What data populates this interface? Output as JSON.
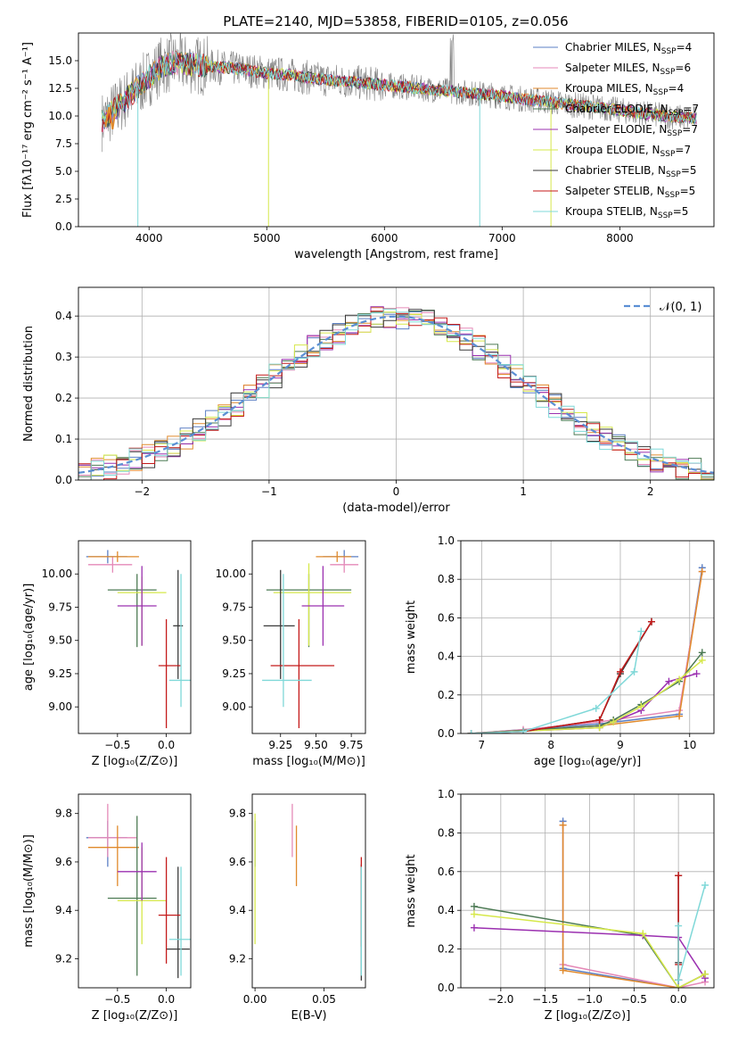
{
  "figure": {
    "title": "PLATE=2140, MJD=53858, FIBERID=0105, z=0.056"
  },
  "chart_data": [
    {
      "id": "spectrum",
      "type": "line",
      "xlabel": "wavelength [Angstrom, rest frame]",
      "ylabel": "Flux [fλ10⁻¹⁷ erg cm⁻² s⁻¹ A⁻¹]",
      "xlim": [
        3400,
        8800
      ],
      "ylim": [
        0,
        17.5
      ],
      "xticks": [
        4000,
        5000,
        6000,
        7000,
        8000
      ],
      "yticks": [
        0.0,
        2.5,
        5.0,
        7.5,
        10.0,
        12.5,
        15.0
      ],
      "legend_position": "upper-right",
      "series": [
        {
          "name": "Chabrier MILES, N_SSP=4",
          "label_main": "Chabrier MILES, N",
          "label_sub": "SSP",
          "label_tail": "=4",
          "color": "#5b7fc4"
        },
        {
          "name": "Salpeter MILES, N_SSP=6",
          "label_main": "Salpeter MILES, N",
          "label_sub": "SSP",
          "label_tail": "=6",
          "color": "#e58ab8"
        },
        {
          "name": "Kroupa MILES, N_SSP=4",
          "label_main": "Kroupa MILES, N",
          "label_sub": "SSP",
          "label_tail": "=4",
          "color": "#e08a2c"
        },
        {
          "name": "Chabrier ELODIE, N_SSP=7",
          "label_main": "Chabrier ELODIE, N",
          "label_sub": "SSP",
          "label_tail": "=7",
          "color": "#4c7a54"
        },
        {
          "name": "Salpeter ELODIE, N_SSP=7",
          "label_main": "Salpeter ELODIE, N",
          "label_sub": "SSP",
          "label_tail": "=7",
          "color": "#9b30b0"
        },
        {
          "name": "Kroupa ELODIE, N_SSP=7",
          "label_main": "Kroupa ELODIE, N",
          "label_sub": "SSP",
          "label_tail": "=7",
          "color": "#d6e84a"
        },
        {
          "name": "Chabrier STELIB, N_SSP=5",
          "label_main": "Chabrier STELIB, N",
          "label_sub": "SSP",
          "label_tail": "=5",
          "color": "#3a3a3a"
        },
        {
          "name": "Salpeter STELIB, N_SSP=5",
          "label_main": "Salpeter STELIB, N",
          "label_sub": "SSP",
          "label_tail": "=5",
          "color": "#c41a1a"
        },
        {
          "name": "Kroupa STELIB, N_SSP=5",
          "label_main": "Kroupa STELIB, N",
          "label_sub": "SSP",
          "label_tail": "=5",
          "color": "#7fd8d8"
        }
      ],
      "data_color": "#808080",
      "continuum_anchor": {
        "wavelength": [
          3600,
          3700,
          3800,
          3900,
          4000,
          4100,
          4200,
          4400,
          4600,
          4800,
          5000,
          5200,
          5400,
          5600,
          5800,
          6000,
          6200,
          6400,
          6600,
          6800,
          7000,
          7200,
          7400,
          7600,
          7800,
          8000,
          8200,
          8400,
          8600
        ],
        "flux": [
          9.5,
          10.5,
          11.5,
          12.5,
          13.5,
          14.5,
          14.8,
          14.6,
          14.4,
          14.2,
          13.9,
          13.7,
          13.4,
          13.2,
          13.0,
          12.8,
          12.6,
          12.4,
          12.2,
          12.0,
          11.8,
          11.5,
          11.3,
          11.0,
          10.8,
          10.5,
          10.2,
          10.0,
          9.8
        ]
      },
      "dips": [
        {
          "wavelength": 3905,
          "flux": 0.0
        },
        {
          "wavelength": 5015,
          "flux": 0.0
        },
        {
          "wavelength": 6810,
          "flux": 0.0
        },
        {
          "wavelength": 7415,
          "flux": 0.0
        }
      ]
    },
    {
      "id": "residuals",
      "type": "histogram",
      "xlabel": "(data-model)/error",
      "ylabel": "Normed distribution",
      "xlim": [
        -2.5,
        2.5
      ],
      "ylim": [
        0,
        0.47
      ],
      "xticks": [
        -2,
        -1,
        0,
        1,
        2
      ],
      "yticks": [
        0.0,
        0.1,
        0.2,
        0.3,
        0.4
      ],
      "grid": true,
      "legend_position": "upper-right",
      "reference_curve": {
        "name": "N(0,1)",
        "label": "𝒩(0, 1)",
        "color": "#5b8fd4",
        "mu": 0,
        "sigma": 1
      },
      "bin_width": 0.1,
      "bin_start": -2.5,
      "series_colors": [
        "#5b7fc4",
        "#e58ab8",
        "#e08a2c",
        "#4c7a54",
        "#9b30b0",
        "#d6e84a",
        "#3a3a3a",
        "#c41a1a",
        "#7fd8d8"
      ]
    },
    {
      "id": "age-vs-Z",
      "type": "errorbar",
      "xlabel": "Z [log₁₀(Z/Z⊙)]",
      "ylabel": "age [log₁₀(age/yr)]",
      "xlim": [
        -0.9,
        0.25
      ],
      "ylim": [
        8.8,
        10.25
      ],
      "xticks": [
        -0.5,
        0.0
      ],
      "yticks": [
        9.0,
        9.25,
        9.5,
        9.75,
        10.0
      ],
      "points": [
        {
          "color": "#5b7fc4",
          "x": -0.6,
          "xerr": [
            0.22,
            0.2
          ],
          "y": 10.13,
          "yerr": [
            0.05,
            0.05
          ]
        },
        {
          "color": "#e58ab8",
          "x": -0.55,
          "xerr": [
            0.25,
            0.2
          ],
          "y": 10.07,
          "yerr": [
            0.06,
            0.06
          ]
        },
        {
          "color": "#e08a2c",
          "x": -0.5,
          "xerr": [
            0.3,
            0.22
          ],
          "y": 10.13,
          "yerr": [
            0.04,
            0.04
          ]
        },
        {
          "color": "#4c7a54",
          "x": -0.3,
          "xerr": [
            0.3,
            0.2
          ],
          "y": 9.88,
          "yerr": [
            0.43,
            0.12
          ]
        },
        {
          "color": "#d6e84a",
          "x": -0.25,
          "xerr": [
            0.25,
            0.25
          ],
          "y": 9.86,
          "yerr": [
            0.4,
            0.12
          ]
        },
        {
          "color": "#9b30b0",
          "x": -0.25,
          "xerr": [
            0.25,
            0.15
          ],
          "y": 9.76,
          "yerr": [
            0.3,
            0.3
          ]
        },
        {
          "color": "#3a3a3a",
          "x": 0.12,
          "xerr": [
            0.05,
            0.05
          ],
          "y": 9.61,
          "yerr": [
            0.4,
            0.42
          ]
        },
        {
          "color": "#c41a1a",
          "x": 0.0,
          "xerr": [
            0.08,
            0.15
          ],
          "y": 9.31,
          "yerr": [
            0.47,
            0.35
          ]
        },
        {
          "color": "#7fd8d8",
          "x": 0.15,
          "xerr": [
            0.12,
            0.12
          ],
          "y": 9.2,
          "yerr": [
            0.2,
            0.8
          ]
        }
      ]
    },
    {
      "id": "age-vs-mass",
      "type": "errorbar",
      "xlabel": "mass [log₁₀(M/M⊙)]",
      "ylabel": "",
      "xlim": [
        9.05,
        9.85
      ],
      "ylim": [
        8.8,
        10.25
      ],
      "xticks": [
        9.25,
        9.5,
        9.75
      ],
      "yticks": [
        9.0,
        9.25,
        9.5,
        9.75,
        10.0
      ],
      "points": [
        {
          "color": "#5b7fc4",
          "x": 9.7,
          "xerr": [
            0.15,
            0.1
          ],
          "y": 10.13,
          "yerr": [
            0.05,
            0.05
          ]
        },
        {
          "color": "#e58ab8",
          "x": 9.7,
          "xerr": [
            0.1,
            0.1
          ],
          "y": 10.07,
          "yerr": [
            0.06,
            0.06
          ]
        },
        {
          "color": "#e08a2c",
          "x": 9.65,
          "xerr": [
            0.15,
            0.1
          ],
          "y": 10.13,
          "yerr": [
            0.04,
            0.04
          ]
        },
        {
          "color": "#4c7a54",
          "x": 9.45,
          "xerr": [
            0.3,
            0.3
          ],
          "y": 9.88,
          "yerr": [
            0.43,
            0.12
          ]
        },
        {
          "color": "#d6e84a",
          "x": 9.45,
          "xerr": [
            0.25,
            0.3
          ],
          "y": 9.86,
          "yerr": [
            0.4,
            0.22
          ]
        },
        {
          "color": "#9b30b0",
          "x": 9.55,
          "xerr": [
            0.15,
            0.15
          ],
          "y": 9.76,
          "yerr": [
            0.3,
            0.3
          ]
        },
        {
          "color": "#3a3a3a",
          "x": 9.25,
          "xerr": [
            0.12,
            0.1
          ],
          "y": 9.61,
          "yerr": [
            0.4,
            0.42
          ]
        },
        {
          "color": "#c41a1a",
          "x": 9.38,
          "xerr": [
            0.2,
            0.25
          ],
          "y": 9.31,
          "yerr": [
            0.47,
            0.35
          ]
        },
        {
          "color": "#7fd8d8",
          "x": 9.27,
          "xerr": [
            0.15,
            0.2
          ],
          "y": 9.2,
          "yerr": [
            0.2,
            0.8
          ]
        }
      ]
    },
    {
      "id": "massweight-vs-age",
      "type": "line",
      "xlabel": "age [log₁₀(age/yr)]",
      "ylabel": "mass weight",
      "xlim": [
        6.7,
        10.35
      ],
      "ylim": [
        0,
        1.0
      ],
      "xticks": [
        7,
        8,
        9,
        10
      ],
      "yticks": [
        0.0,
        0.2,
        0.4,
        0.6,
        0.8,
        1.0
      ],
      "grid": true,
      "series": [
        {
          "color": "#5b7fc4",
          "x": [
            6.85,
            8.7,
            9.85,
            10.18
          ],
          "y": [
            0.0,
            0.05,
            0.1,
            0.86
          ]
        },
        {
          "color": "#e58ab8",
          "x": [
            6.85,
            7.6,
            8.7,
            9.85,
            10.18
          ],
          "y": [
            0.0,
            0.02,
            0.06,
            0.12,
            0.84
          ]
        },
        {
          "color": "#e08a2c",
          "x": [
            6.85,
            8.7,
            9.85,
            10.18
          ],
          "y": [
            0.0,
            0.04,
            0.09,
            0.84
          ]
        },
        {
          "color": "#4c7a54",
          "x": [
            6.85,
            8.7,
            8.9,
            9.3,
            9.85,
            10.18
          ],
          "y": [
            0.0,
            0.04,
            0.07,
            0.15,
            0.27,
            0.42
          ]
        },
        {
          "color": "#9b30b0",
          "x": [
            6.85,
            8.7,
            8.9,
            9.3,
            9.7,
            10.1
          ],
          "y": [
            0.0,
            0.03,
            0.06,
            0.12,
            0.27,
            0.31
          ]
        },
        {
          "color": "#d6e84a",
          "x": [
            6.85,
            8.7,
            8.9,
            9.3,
            9.85,
            10.18
          ],
          "y": [
            0.0,
            0.03,
            0.06,
            0.14,
            0.28,
            0.38
          ]
        },
        {
          "color": "#3a3a3a",
          "x": [
            6.85,
            7.6,
            8.7,
            9.0,
            9.45
          ],
          "y": [
            0.0,
            0.01,
            0.07,
            0.31,
            0.58
          ]
        },
        {
          "color": "#c41a1a",
          "x": [
            6.85,
            7.6,
            8.7,
            9.0,
            9.45
          ],
          "y": [
            0.0,
            0.01,
            0.07,
            0.32,
            0.58
          ]
        },
        {
          "color": "#7fd8d8",
          "x": [
            6.85,
            7.6,
            8.65,
            9.2,
            9.3
          ],
          "y": [
            0.0,
            0.01,
            0.13,
            0.32,
            0.53
          ]
        }
      ]
    },
    {
      "id": "mass-vs-Z",
      "type": "errorbar",
      "xlabel": "Z [log₁₀(Z/Z⊙)]",
      "ylabel": "mass [log₁₀(M/M⊙)]",
      "xlim": [
        -0.9,
        0.25
      ],
      "ylim": [
        9.08,
        9.88
      ],
      "xticks": [
        -0.5,
        0.0
      ],
      "yticks": [
        9.2,
        9.4,
        9.6,
        9.8
      ],
      "points": [
        {
          "color": "#5b7fc4",
          "x": -0.6,
          "xerr": [
            0.22,
            0.2
          ],
          "y": 9.7,
          "yerr": [
            0.12,
            0.07
          ]
        },
        {
          "color": "#e58ab8",
          "x": -0.6,
          "xerr": [
            0.2,
            0.3
          ],
          "y": 9.7,
          "yerr": [
            0.08,
            0.14
          ]
        },
        {
          "color": "#e08a2c",
          "x": -0.5,
          "xerr": [
            0.3,
            0.22
          ],
          "y": 9.66,
          "yerr": [
            0.16,
            0.09
          ]
        },
        {
          "color": "#4c7a54",
          "x": -0.3,
          "xerr": [
            0.3,
            0.2
          ],
          "y": 9.45,
          "yerr": [
            0.32,
            0.34
          ]
        },
        {
          "color": "#d6e84a",
          "x": -0.25,
          "xerr": [
            0.25,
            0.25
          ],
          "y": 9.44,
          "yerr": [
            0.18,
            0.22
          ]
        },
        {
          "color": "#9b30b0",
          "x": -0.25,
          "xerr": [
            0.25,
            0.15
          ],
          "y": 9.56,
          "yerr": [
            0.12,
            0.12
          ]
        },
        {
          "color": "#3a3a3a",
          "x": 0.12,
          "xerr": [
            0.12,
            0.12
          ],
          "y": 9.24,
          "yerr": [
            0.12,
            0.34
          ]
        },
        {
          "color": "#c41a1a",
          "x": 0.0,
          "xerr": [
            0.08,
            0.15
          ],
          "y": 9.38,
          "yerr": [
            0.2,
            0.24
          ]
        },
        {
          "color": "#7fd8d8",
          "x": 0.15,
          "xerr": [
            0.12,
            0.12
          ],
          "y": 9.28,
          "yerr": [
            0.15,
            0.3
          ]
        }
      ]
    },
    {
      "id": "mass-vs-EBV",
      "type": "errorbar",
      "xlabel": "E(B-V)",
      "ylabel": "",
      "xlim": [
        -0.002,
        0.08
      ],
      "ylim": [
        9.08,
        9.88
      ],
      "xticks": [
        0.0,
        0.05
      ],
      "yticks": [
        9.2,
        9.4,
        9.6,
        9.8
      ],
      "points": [
        {
          "color": "#5b7fc4",
          "x": 0.0,
          "xerr": [
            0,
            0
          ],
          "y": 9.7,
          "yerr": [
            0.12,
            0.07
          ]
        },
        {
          "color": "#d6e84a",
          "x": 0.0,
          "xerr": [
            0,
            0
          ],
          "y": 9.44,
          "yerr": [
            0.18,
            0.36
          ]
        },
        {
          "color": "#e58ab8",
          "x": 0.027,
          "xerr": [
            0,
            0
          ],
          "y": 9.72,
          "yerr": [
            0.1,
            0.12
          ]
        },
        {
          "color": "#e08a2c",
          "x": 0.03,
          "xerr": [
            0,
            0
          ],
          "y": 9.66,
          "yerr": [
            0.16,
            0.09
          ]
        },
        {
          "color": "#3a3a3a",
          "x": 0.077,
          "xerr": [
            0,
            0
          ],
          "y": 9.35,
          "yerr": [
            0.24,
            0.24
          ]
        },
        {
          "color": "#c41a1a",
          "x": 0.077,
          "xerr": [
            0,
            0
          ],
          "y": 9.4,
          "yerr": [
            0.15,
            0.22
          ]
        },
        {
          "color": "#7fd8d8",
          "x": 0.077,
          "xerr": [
            0,
            0
          ],
          "y": 9.28,
          "yerr": [
            0.15,
            0.3
          ]
        }
      ]
    },
    {
      "id": "massweight-vs-Z",
      "type": "line",
      "xlabel": "Z [log₁₀(Z/Z⊙)]",
      "ylabel": "mass weight",
      "xlim": [
        -2.45,
        0.4
      ],
      "ylim": [
        0,
        1.0
      ],
      "xticks": [
        -2.0,
        -1.5,
        -1.0,
        -0.5,
        0.0
      ],
      "yticks": [
        0.0,
        0.2,
        0.4,
        0.6,
        0.8,
        1.0
      ],
      "grid": true,
      "series": [
        {
          "color": "#5b7fc4",
          "x": [
            -1.3,
            -1.3,
            0.0,
            0.0
          ],
          "y": [
            0.86,
            0.1,
            0.0,
            0.04
          ]
        },
        {
          "color": "#e58ab8",
          "x": [
            -1.3,
            -1.3,
            0.0,
            0.3
          ],
          "y": [
            0.84,
            0.12,
            0.0,
            0.03
          ]
        },
        {
          "color": "#e08a2c",
          "x": [
            -1.3,
            -1.3,
            0.0,
            0.3
          ],
          "y": [
            0.84,
            0.09,
            0.0,
            0.07
          ]
        },
        {
          "color": "#4c7a54",
          "x": [
            -2.3,
            -0.4,
            0.0,
            0.3
          ],
          "y": [
            0.42,
            0.27,
            0.0,
            0.07
          ]
        },
        {
          "color": "#9b30b0",
          "x": [
            -2.3,
            -0.4,
            0.0,
            0.3
          ],
          "y": [
            0.31,
            0.27,
            0.26,
            0.05
          ]
        },
        {
          "color": "#d6e84a",
          "x": [
            -2.3,
            -0.4,
            0.0,
            0.3
          ],
          "y": [
            0.38,
            0.28,
            0.0,
            0.07
          ]
        },
        {
          "color": "#3a3a3a",
          "x": [
            0.0,
            0.0,
            0.0
          ],
          "y": [
            0.58,
            0.13,
            0.04
          ]
        },
        {
          "color": "#c41a1a",
          "x": [
            0.0,
            0.0,
            0.0
          ],
          "y": [
            0.58,
            0.12,
            0.04
          ]
        },
        {
          "color": "#7fd8d8",
          "x": [
            0.0,
            0.0,
            0.3
          ],
          "y": [
            0.32,
            0.04,
            0.53
          ]
        }
      ]
    }
  ]
}
